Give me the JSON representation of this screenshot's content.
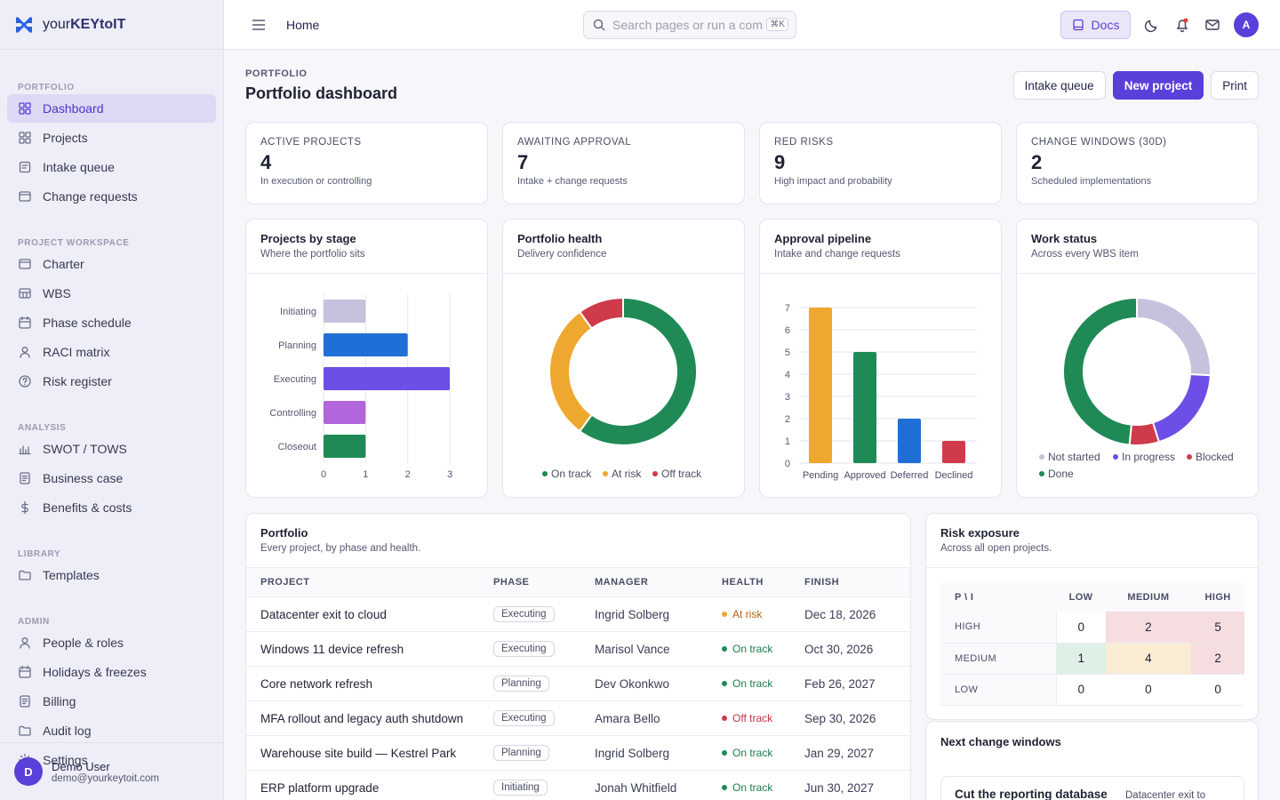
{
  "brand": {
    "prefix": "your",
    "bold": "KEY",
    "suffix": "toIT"
  },
  "sidebar": {
    "sections": [
      {
        "title": "PORTFOLIO",
        "items": [
          {
            "label": "Dashboard",
            "icon": "grid-icon",
            "active": true
          },
          {
            "label": "Projects",
            "icon": "grid-icon"
          },
          {
            "label": "Intake queue",
            "icon": "inbox-icon"
          },
          {
            "label": "Change requests",
            "icon": "window-icon"
          }
        ]
      },
      {
        "title": "PROJECT WORKSPACE",
        "items": [
          {
            "label": "Charter",
            "icon": "window-icon"
          },
          {
            "label": "WBS",
            "icon": "table-icon"
          },
          {
            "label": "Phase schedule",
            "icon": "calendar-icon"
          },
          {
            "label": "RACI matrix",
            "icon": "person-icon"
          },
          {
            "label": "Risk register",
            "icon": "help-circle-icon"
          }
        ]
      },
      {
        "title": "ANALYSIS",
        "items": [
          {
            "label": "SWOT / TOWS",
            "icon": "bar-chart-icon"
          },
          {
            "label": "Business case",
            "icon": "document-icon"
          },
          {
            "label": "Benefits & costs",
            "icon": "dollar-icon"
          }
        ]
      },
      {
        "title": "LIBRARY",
        "items": [
          {
            "label": "Templates",
            "icon": "folder-icon"
          }
        ]
      },
      {
        "title": "ADMIN",
        "items": [
          {
            "label": "People & roles",
            "icon": "person-icon"
          },
          {
            "label": "Holidays & freezes",
            "icon": "calendar-icon"
          },
          {
            "label": "Billing",
            "icon": "document-icon"
          },
          {
            "label": "Audit log",
            "icon": "folder-icon"
          },
          {
            "label": "Settings",
            "icon": "gear-icon"
          }
        ]
      }
    ],
    "user": {
      "initial": "D",
      "name": "Demo User",
      "email": "demo@yourkeytoit.com"
    }
  },
  "topbar": {
    "breadcrumb": "Home",
    "search_placeholder": "Search pages or run a command",
    "search_shortcut": "⌘K",
    "docs_label": "Docs",
    "avatar_initial": "A"
  },
  "page": {
    "eyebrow": "PORTFOLIO",
    "title": "Portfolio dashboard",
    "actions": {
      "intake": "Intake queue",
      "new_project": "New project",
      "print": "Print"
    }
  },
  "kpis": [
    {
      "label": "ACTIVE PROJECTS",
      "value": "4",
      "sub": "In execution or controlling"
    },
    {
      "label": "AWAITING APPROVAL",
      "value": "7",
      "sub": "Intake + change requests"
    },
    {
      "label": "RED RISKS",
      "value": "9",
      "sub": "High impact and probability"
    },
    {
      "label": "CHANGE WINDOWS (30D)",
      "value": "2",
      "sub": "Scheduled implementations"
    }
  ],
  "cards": {
    "stage": {
      "title": "Projects by stage",
      "sub": "Where the portfolio sits"
    },
    "health": {
      "title": "Portfolio health",
      "sub": "Delivery confidence"
    },
    "pipeline": {
      "title": "Approval pipeline",
      "sub": "Intake and change requests"
    },
    "work": {
      "title": "Work status",
      "sub": "Across every WBS item"
    }
  },
  "chart_data": [
    {
      "type": "bar",
      "orientation": "horizontal",
      "title": "Projects by stage",
      "categories": [
        "Initiating",
        "Planning",
        "Executing",
        "Controlling",
        "Closeout"
      ],
      "values": [
        1,
        2,
        3,
        1,
        1
      ],
      "colors": [
        "#c4c2dc",
        "#1f6fd6",
        "#6d4ee6",
        "#b266db",
        "#1f8a55"
      ],
      "xlim": [
        0,
        3
      ],
      "xticks": [
        0,
        1,
        2,
        3
      ],
      "grid": true
    },
    {
      "type": "pie",
      "donut": true,
      "title": "Portfolio health",
      "categories": [
        "On track",
        "At risk",
        "Off track"
      ],
      "values": [
        6,
        3,
        1
      ],
      "colors": [
        "#1f8a55",
        "#eea82f",
        "#cf3b4a"
      ],
      "legend": "bottom"
    },
    {
      "type": "bar",
      "title": "Approval pipeline",
      "categories": [
        "Pending",
        "Approved",
        "Deferred",
        "Declined"
      ],
      "values": [
        7,
        5,
        2,
        1
      ],
      "colors": [
        "#eea82f",
        "#1f8a55",
        "#1f6fd6",
        "#cf3b4a"
      ],
      "ylim": [
        0,
        7
      ],
      "yticks": [
        0,
        1,
        2,
        3,
        4,
        5,
        6,
        7
      ],
      "grid": true
    },
    {
      "type": "pie",
      "donut": true,
      "title": "Work status",
      "categories": [
        "Not started",
        "In progress",
        "Blocked",
        "Done"
      ],
      "values": [
        8,
        6,
        2,
        15
      ],
      "colors": [
        "#c4c2dc",
        "#6d4ee6",
        "#cf3b4a",
        "#1f8a55"
      ],
      "legend": "bottom"
    }
  ],
  "portfolio": {
    "title": "Portfolio",
    "sub": "Every project, by phase and health.",
    "columns": [
      "PROJECT",
      "PHASE",
      "MANAGER",
      "HEALTH",
      "FINISH"
    ],
    "rows": [
      {
        "project": "Datacenter exit to cloud",
        "phase": "Executing",
        "manager": "Ingrid Solberg",
        "health": "At risk",
        "finish": "Dec 18, 2026"
      },
      {
        "project": "Windows 11 device refresh",
        "phase": "Executing",
        "manager": "Marisol Vance",
        "health": "On track",
        "finish": "Oct 30, 2026"
      },
      {
        "project": "Core network refresh",
        "phase": "Planning",
        "manager": "Dev Okonkwo",
        "health": "On track",
        "finish": "Feb 26, 2027"
      },
      {
        "project": "MFA rollout and legacy auth shutdown",
        "phase": "Executing",
        "manager": "Amara Bello",
        "health": "Off track",
        "finish": "Sep 30, 2026"
      },
      {
        "project": "Warehouse site build — Kestrel Park",
        "phase": "Planning",
        "manager": "Ingrid Solberg",
        "health": "On track",
        "finish": "Jan 29, 2027"
      },
      {
        "project": "ERP platform upgrade",
        "phase": "Initiating",
        "manager": "Jonah Whitfield",
        "health": "On track",
        "finish": "Jun 30, 2027"
      }
    ],
    "health_colors": {
      "On track": "#1f8a55",
      "At risk": "#eea82f",
      "Off track": "#cf3b4a"
    },
    "health_text_colors": {
      "On track": "#1f7a4a",
      "At risk": "#b8620d",
      "Off track": "#c23344"
    }
  },
  "risk": {
    "title": "Risk exposure",
    "sub": "Across all open projects.",
    "header": [
      "P \\ I",
      "LOW",
      "MEDIUM",
      "HIGH"
    ],
    "rows": [
      {
        "label": "HIGH",
        "values": [
          "0",
          "2",
          "5"
        ],
        "colors": [
          "#ffffff",
          "#f5dde0",
          "#f5dde0"
        ]
      },
      {
        "label": "MEDIUM",
        "values": [
          "1",
          "4",
          "2"
        ],
        "colors": [
          "#dff0e6",
          "#fbecd4",
          "#f5dde0"
        ]
      },
      {
        "label": "LOW",
        "values": [
          "0",
          "0",
          "0"
        ],
        "colors": [
          "#ffffff",
          "#ffffff",
          "#ffffff"
        ]
      }
    ]
  },
  "changes": {
    "title": "Next change windows",
    "first_item": {
      "title": "Cut the reporting database",
      "project": "Datacenter exit to"
    }
  }
}
